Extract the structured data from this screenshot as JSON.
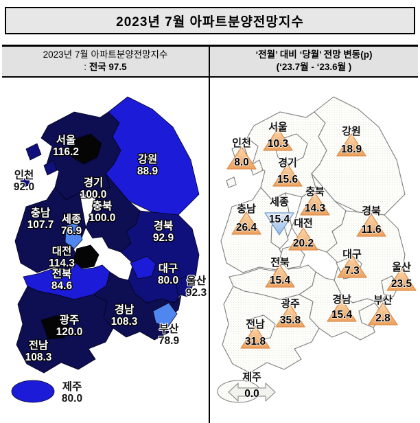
{
  "title": "2023년 7월 아파트분양전망지수",
  "left_panel": {
    "header_line1": "2023년 7월 아파트분양전망지수",
    "header_line2_prefix": ": ",
    "header_line2_bold": "전국 97.5"
  },
  "right_panel": {
    "header_line1": "‘전월’ 대비 ‘당월’ 전망 변동(p)",
    "header_line2": "(‘23.7월 - ‘23.6월 )"
  },
  "colors": {
    "band_110_plus": "#050505",
    "band_100_110": "#0e0e52",
    "band_90_100": "#10107c",
    "band_80_90": "#1b1bd8",
    "band_under_80": "#4f87ee",
    "up_triangle": "#f2ab67",
    "down_triangle": "#a9c8ec",
    "flat_arrow": "#f2f2ee",
    "header_bg": "#e2e2e2"
  },
  "chart_data": {
    "type": "choropleth_map",
    "title": "2023년 7월 아파트분양전망지수",
    "national": {
      "label": "전국",
      "index": 97.5
    },
    "change_metric": "‘전월’ 대비 ‘당월’ 전망 변동(p)",
    "change_period": "‘23.7월 - ‘23.6월",
    "regions": [
      {
        "id": "gyeonggi",
        "name": "경기",
        "index": 100.0,
        "change": 15.6,
        "direction": "up",
        "fill": "#0e0e52",
        "label_color": "#ffffff"
      },
      {
        "id": "gangwon",
        "name": "강원",
        "index": 88.9,
        "change": 18.9,
        "direction": "up",
        "fill": "#1b1bd8",
        "label_color": "#ffffff"
      },
      {
        "id": "chungbuk",
        "name": "충북",
        "index": 100.0,
        "change": 14.3,
        "direction": "up",
        "fill": "#0e0e52",
        "label_color": "#ffffff"
      },
      {
        "id": "chungnam",
        "name": "충남",
        "index": 107.7,
        "change": 26.4,
        "direction": "up",
        "fill": "#0e0e52",
        "label_color": "#ffffff"
      },
      {
        "id": "gyeongbuk",
        "name": "경북",
        "index": 92.9,
        "change": 11.6,
        "direction": "up",
        "fill": "#10107c",
        "label_color": "#ffffff"
      },
      {
        "id": "jeonbuk",
        "name": "전북",
        "index": 84.6,
        "change": 15.4,
        "direction": "up",
        "fill": "#1b1bd8",
        "label_color": "#ffffff"
      },
      {
        "id": "gyeongnam",
        "name": "경남",
        "index": 108.3,
        "change": 15.4,
        "direction": "up",
        "fill": "#0e0e52",
        "label_color": "#ffffff"
      },
      {
        "id": "jeonnam",
        "name": "전남",
        "index": 108.3,
        "change": 31.8,
        "direction": "up",
        "fill": "#0e0e52",
        "label_color": "#ffffff"
      },
      {
        "id": "jeju",
        "name": "제주",
        "index": 80.0,
        "change": 0.0,
        "direction": "flat",
        "fill": "#1b1bd8",
        "label_color": "#111111"
      },
      {
        "id": "incheon",
        "name": "인천",
        "index": 92.0,
        "change": 8.0,
        "direction": "up",
        "fill": "#10107c",
        "label_color": "#111111"
      },
      {
        "id": "seoul",
        "name": "서울",
        "index": 116.2,
        "change": 10.3,
        "direction": "up",
        "fill": "#050505",
        "label_color": "#ffffff"
      },
      {
        "id": "sejong",
        "name": "세종",
        "index": 76.9,
        "change": 15.4,
        "direction": "down",
        "fill": "#4f87ee",
        "label_color": "#ffffff"
      },
      {
        "id": "daejeon",
        "name": "대전",
        "index": 114.3,
        "change": 20.2,
        "direction": "up",
        "fill": "#050505",
        "label_color": "#ffffff"
      },
      {
        "id": "daegu",
        "name": "대구",
        "index": 80.0,
        "change": 7.3,
        "direction": "up",
        "fill": "#1b1bd8",
        "label_color": "#ffffff"
      },
      {
        "id": "ulsan",
        "name": "울산",
        "index": 92.3,
        "change": 23.5,
        "direction": "up",
        "fill": "#10107c",
        "label_color": "#111111"
      },
      {
        "id": "busan",
        "name": "부산",
        "index": 78.9,
        "change": 2.8,
        "direction": "up",
        "fill": "#4f87ee",
        "label_color": "#111111"
      },
      {
        "id": "gwangju",
        "name": "광주",
        "index": 120.0,
        "change": 35.8,
        "direction": "up",
        "fill": "#050505",
        "label_color": "#ffffff"
      }
    ]
  }
}
